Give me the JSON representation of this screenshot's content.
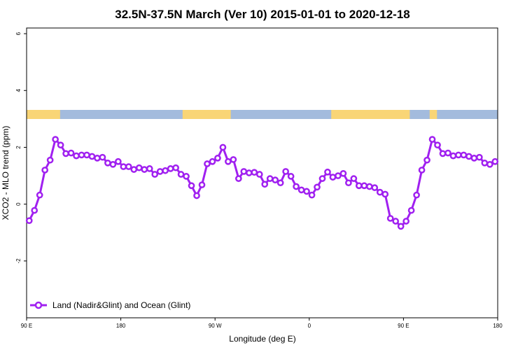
{
  "chart_data": {
    "type": "line",
    "title": "32.5N-37.5N March (Ver 10)   2015-01-01 to 2020-12-18",
    "xlabel": "Longitude (deg E)",
    "ylabel": "XCO2 - MLO trend (ppm)",
    "xlim": [
      90,
      540
    ],
    "ylim": [
      -4,
      6.2
    ],
    "x_ticks": [
      {
        "value": 90,
        "label": "90 E"
      },
      {
        "value": 180,
        "label": "180"
      },
      {
        "value": 270,
        "label": "90 W"
      },
      {
        "value": 360,
        "label": "0"
      },
      {
        "value": 450,
        "label": "90 E"
      },
      {
        "value": 540,
        "label": "180"
      }
    ],
    "y_ticks": [
      {
        "value": -2,
        "label": "-2"
      },
      {
        "value": 0,
        "label": "0"
      },
      {
        "value": 2,
        "label": "2"
      },
      {
        "value": 4,
        "label": "4"
      },
      {
        "value": 6,
        "label": "6"
      }
    ],
    "series": [
      {
        "name": "Land (Nadir&Glint) and Ocean (Glint)",
        "color": "#a020f0",
        "x": [
          92.5,
          97.5,
          102.5,
          107.5,
          112.5,
          117.5,
          122.5,
          127.5,
          132.5,
          137.5,
          142.5,
          147.5,
          152.5,
          157.5,
          162.5,
          167.5,
          172.5,
          177.5,
          182.5,
          187.5,
          192.5,
          197.5,
          202.5,
          207.5,
          212.5,
          217.5,
          222.5,
          227.5,
          232.5,
          237.5,
          242.5,
          247.5,
          252.5,
          257.5,
          262.5,
          267.5,
          272.5,
          277.5,
          282.5,
          287.5,
          292.5,
          297.5,
          302.5,
          307.5,
          312.5,
          317.5,
          322.5,
          327.5,
          332.5,
          337.5,
          342.5,
          347.5,
          352.5,
          357.5,
          362.5,
          367.5,
          372.5,
          377.5,
          382.5,
          387.5,
          392.5,
          397.5,
          402.5,
          407.5,
          412.5,
          417.5,
          422.5,
          427.5,
          432.5,
          437.5,
          442.5,
          447.5,
          452.5,
          457.5,
          462.5,
          467.5,
          472.5,
          477.5,
          482.5,
          487.5,
          492.5,
          497.5,
          502.5,
          507.5,
          512.5,
          517.5,
          522.5,
          527.5,
          532.5,
          537.5
        ],
        "values": [
          -0.58,
          -0.22,
          0.32,
          1.2,
          1.55,
          2.28,
          2.08,
          1.78,
          1.8,
          1.7,
          1.73,
          1.73,
          1.68,
          1.62,
          1.65,
          1.45,
          1.4,
          1.5,
          1.32,
          1.32,
          1.22,
          1.28,
          1.22,
          1.25,
          1.05,
          1.15,
          1.18,
          1.25,
          1.28,
          1.05,
          0.98,
          0.65,
          0.3,
          0.68,
          1.42,
          1.5,
          1.62,
          2.0,
          1.5,
          1.57,
          0.9,
          1.15,
          1.1,
          1.12,
          1.05,
          0.7,
          0.9,
          0.85,
          0.75,
          1.15,
          0.98,
          0.62,
          0.5,
          0.45,
          0.32,
          0.6,
          0.9,
          1.13,
          0.95,
          1.0,
          1.08,
          0.75,
          0.9,
          0.65,
          0.65,
          0.62,
          0.58,
          0.42,
          0.35,
          -0.5,
          -0.6,
          -0.78,
          -0.6,
          -0.22,
          0.32,
          1.2,
          1.55,
          2.28,
          2.08,
          1.78,
          1.8,
          1.7,
          1.73,
          1.73,
          1.68,
          1.62,
          1.65,
          1.45,
          1.4,
          1.5
        ]
      }
    ],
    "legend": {
      "position": "bottom-left",
      "entries": [
        "Land (Nadir&Glint) and Ocean (Glint)"
      ]
    },
    "land_ocean_strip": {
      "ocean_color": "#a3bbdd",
      "land_color": "#f9d576",
      "land_segments_lon": [
        [
          90,
          122
        ],
        [
          239,
          285
        ],
        [
          381,
          456
        ],
        [
          475,
          482
        ]
      ]
    }
  }
}
